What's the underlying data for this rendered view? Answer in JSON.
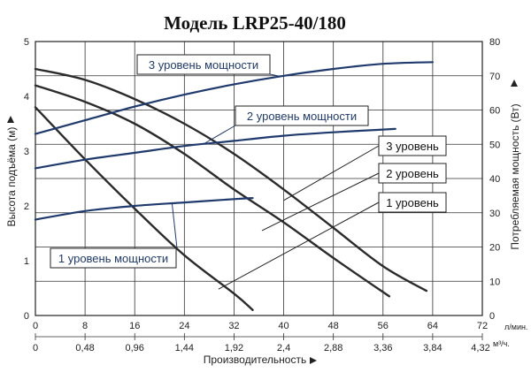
{
  "chart_data": {
    "type": "line",
    "title": "Модель LRP25-40/180",
    "xlabel": "Производительность",
    "ylabel": "Высота подъёма (м)",
    "y2label": "Потребляемая мощность (Вт)",
    "x_unit": "л/мин.",
    "x2_unit": "м³/ч.",
    "xlim": [
      0,
      72
    ],
    "ylim": [
      0,
      5
    ],
    "y2lim": [
      0,
      80
    ],
    "x_ticks": [
      "0",
      "8",
      "16",
      "24",
      "32",
      "40",
      "48",
      "56",
      "64",
      "72"
    ],
    "x2_ticks": [
      "0",
      "0,48",
      "0,96",
      "1,44",
      "1,92",
      "2,4",
      "2,88",
      "3,36",
      "3,84",
      "4,32"
    ],
    "y_ticks": [
      "0",
      "1",
      "2",
      "3",
      "4",
      "5"
    ],
    "y2_ticks": [
      "0",
      "10",
      "20",
      "30",
      "40",
      "50",
      "60",
      "70",
      "80"
    ],
    "grid": true,
    "head_series": [
      {
        "name": "1 уровень",
        "x": [
          0,
          8,
          16,
          24,
          32,
          35
        ],
        "y": [
          3.8,
          2.85,
          1.95,
          1.1,
          0.4,
          0.1
        ]
      },
      {
        "name": "2 уровень",
        "x": [
          0,
          8,
          16,
          24,
          32,
          40,
          48,
          57
        ],
        "y": [
          4.2,
          3.9,
          3.5,
          2.95,
          2.3,
          1.7,
          1.05,
          0.35
        ]
      },
      {
        "name": "3 уровень",
        "x": [
          0,
          8,
          16,
          24,
          32,
          40,
          48,
          56,
          63
        ],
        "y": [
          4.5,
          4.3,
          3.95,
          3.5,
          2.95,
          2.3,
          1.6,
          0.9,
          0.45
        ]
      }
    ],
    "power_series": [
      {
        "name": "1 уровень мощности",
        "x": [
          0,
          8,
          16,
          24,
          32,
          35
        ],
        "y": [
          28,
          30.5,
          32,
          33,
          34,
          34.3
        ]
      },
      {
        "name": "2 уровень мощности",
        "x": [
          0,
          8,
          16,
          24,
          32,
          40,
          48,
          56,
          58
        ],
        "y": [
          43,
          45.5,
          47.5,
          49.5,
          51,
          52.5,
          53.5,
          54.3,
          54.5
        ]
      },
      {
        "name": "3 уровень мощности",
        "x": [
          0,
          8,
          16,
          24,
          32,
          40,
          48,
          56,
          64
        ],
        "y": [
          53,
          57,
          61,
          64.5,
          67.5,
          70,
          72,
          73.5,
          74
        ]
      }
    ]
  }
}
